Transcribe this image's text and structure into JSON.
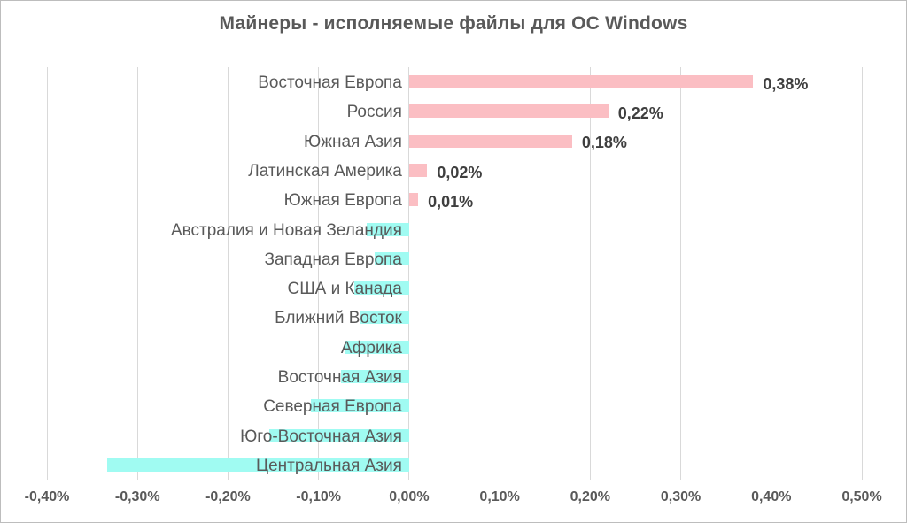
{
  "title": "Майнеры - исполняемые файлы для ОС Windows",
  "chart_data": {
    "type": "bar",
    "orientation": "horizontal",
    "title": "Майнеры - исполняемые файлы для ОС Windows",
    "categories": [
      "Восточная Европа",
      "Россия",
      "Южная Азия",
      "Латинская Америка",
      "Южная Европа",
      "Австралия и Новая Зеландия",
      "Западная Европа",
      "США и Канада",
      "Ближний Восток",
      "Африка",
      "Восточная Азия",
      "Северная Европа",
      "Юго-Восточная Азия",
      "Центральная Азия"
    ],
    "values": [
      0.38,
      0.22,
      0.18,
      0.02,
      0.01,
      -0.047,
      -0.038,
      -0.061,
      -0.055,
      -0.07,
      -0.075,
      -0.108,
      -0.154,
      -0.333
    ],
    "value_labels": [
      "0,38%",
      "0,22%",
      "0,18%",
      "0,02%",
      "0,01%",
      "",
      "",
      "",
      "",
      "",
      "",
      "",
      "",
      ""
    ],
    "x_ticks": [
      -0.4,
      -0.3,
      -0.2,
      -0.1,
      0.0,
      0.1,
      0.2,
      0.3,
      0.4,
      0.5
    ],
    "x_tick_labels": [
      "-0,40%",
      "-0,30%",
      "-0,20%",
      "-0,10%",
      "0,00%",
      "0,10%",
      "0,20%",
      "0,30%",
      "0,40%",
      "0,50%"
    ],
    "xlim": [
      -0.4,
      0.5
    ],
    "grid": "vertical-gridlines-on",
    "legend": "none",
    "colors": {
      "positive_bar": "#FBBEC3",
      "negative_bar": "#A0FBF2",
      "gridline": "#d9d9d9",
      "category_text": "#595959",
      "value_text": "#3f3f3f",
      "title_text": "#595959",
      "frame_border": "#bdbdbd",
      "background": "#ffffff"
    }
  }
}
